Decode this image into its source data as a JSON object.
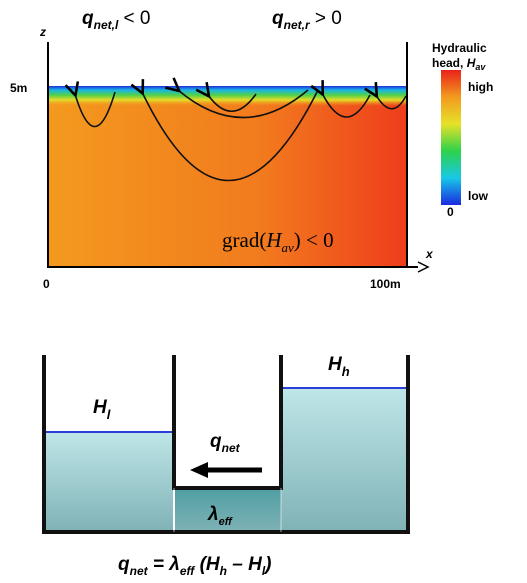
{
  "top_panel": {
    "q_left": [
      "q",
      "net,l",
      " < 0"
    ],
    "q_right": [
      "q",
      "net,r",
      " > 0"
    ],
    "z_axis": "z",
    "x_axis": "x",
    "z_top": "5m",
    "x_start": "0",
    "x_end": "100m",
    "legend_title_1": "Hydraulic",
    "legend_title_2": [
      "head, ",
      "H",
      "av"
    ],
    "legend_high": "high",
    "legend_low": "low",
    "legend_zero": "0",
    "gradient": [
      "grad(",
      "H",
      "av",
      ") < 0"
    ]
  },
  "bottom_panel": {
    "h_low": [
      "H",
      "l"
    ],
    "h_high": [
      "H",
      "h"
    ],
    "q_net": [
      "q",
      "net"
    ],
    "lambda": [
      "λ",
      "eff"
    ],
    "equation": [
      "q",
      "net",
      " = λ",
      "eff",
      " (H",
      "h",
      " – H",
      "l",
      ")"
    ]
  }
}
